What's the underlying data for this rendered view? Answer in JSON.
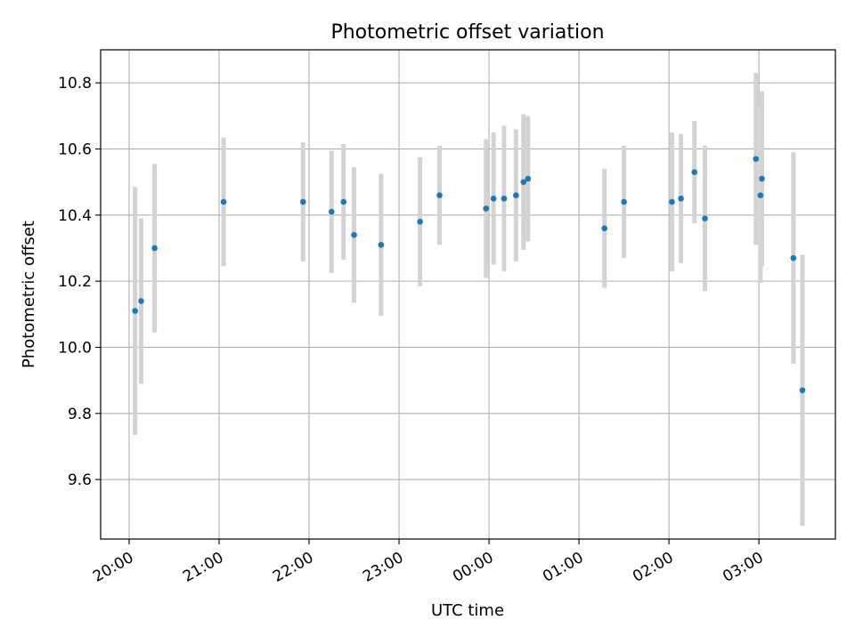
{
  "chart_data": {
    "type": "scatter",
    "title": "Photometric offset variation",
    "xlabel": "UTC time",
    "ylabel": "Photometric offset",
    "x_ticks": [
      "20:00",
      "21:00",
      "22:00",
      "23:00",
      "00:00",
      "01:00",
      "02:00",
      "03:00"
    ],
    "y_ticks": [
      "9.6",
      "9.8",
      "10.0",
      "10.2",
      "10.4",
      "10.6",
      "10.8"
    ],
    "x_axis": {
      "type": "time",
      "start": "20:00",
      "end": "03:00",
      "lim": [
        "19:41",
        "03:51"
      ]
    },
    "ylim": [
      9.42,
      10.9
    ],
    "grid": true,
    "colors": {
      "marker": "#1f77b4",
      "errorbar": "#d3d3d3",
      "grid": "#b0b0b0"
    },
    "series": [
      {
        "points": [
          {
            "t": "20:04",
            "y": 10.11,
            "err": 0.375
          },
          {
            "t": "20:08",
            "y": 10.14,
            "err": 0.25
          },
          {
            "t": "20:17",
            "y": 10.3,
            "err": 0.255
          },
          {
            "t": "21:03",
            "y": 10.44,
            "err": 0.195
          },
          {
            "t": "21:56",
            "y": 10.44,
            "err": 0.18
          },
          {
            "t": "22:15",
            "y": 10.41,
            "err": 0.185
          },
          {
            "t": "22:23",
            "y": 10.44,
            "err": 0.175
          },
          {
            "t": "22:30",
            "y": 10.34,
            "err": 0.205
          },
          {
            "t": "22:48",
            "y": 10.31,
            "err": 0.215
          },
          {
            "t": "23:14",
            "y": 10.38,
            "err": 0.195
          },
          {
            "t": "23:27",
            "y": 10.46,
            "err": 0.15
          },
          {
            "t": "23:58",
            "y": 10.42,
            "err": 0.21
          },
          {
            "t": "00:03",
            "y": 10.45,
            "err": 0.2
          },
          {
            "t": "00:10",
            "y": 10.45,
            "err": 0.22
          },
          {
            "t": "00:18",
            "y": 10.46,
            "err": 0.2
          },
          {
            "t": "00:23",
            "y": 10.5,
            "err": 0.205
          },
          {
            "t": "00:26",
            "y": 10.51,
            "err": 0.19
          },
          {
            "t": "01:17",
            "y": 10.36,
            "err": 0.18
          },
          {
            "t": "01:30",
            "y": 10.44,
            "err": 0.17
          },
          {
            "t": "02:02",
            "y": 10.44,
            "err": 0.21
          },
          {
            "t": "02:08",
            "y": 10.45,
            "err": 0.195
          },
          {
            "t": "02:17",
            "y": 10.53,
            "err": 0.155
          },
          {
            "t": "02:24",
            "y": 10.39,
            "err": 0.22
          },
          {
            "t": "02:58",
            "y": 10.57,
            "err": 0.26
          },
          {
            "t": "03:01",
            "y": 10.46,
            "err": 0.265
          },
          {
            "t": "03:02",
            "y": 10.51,
            "err": 0.265
          },
          {
            "t": "03:23",
            "y": 10.27,
            "err": 0.32
          },
          {
            "t": "03:29",
            "y": 9.87,
            "err": 0.41
          }
        ]
      }
    ]
  }
}
